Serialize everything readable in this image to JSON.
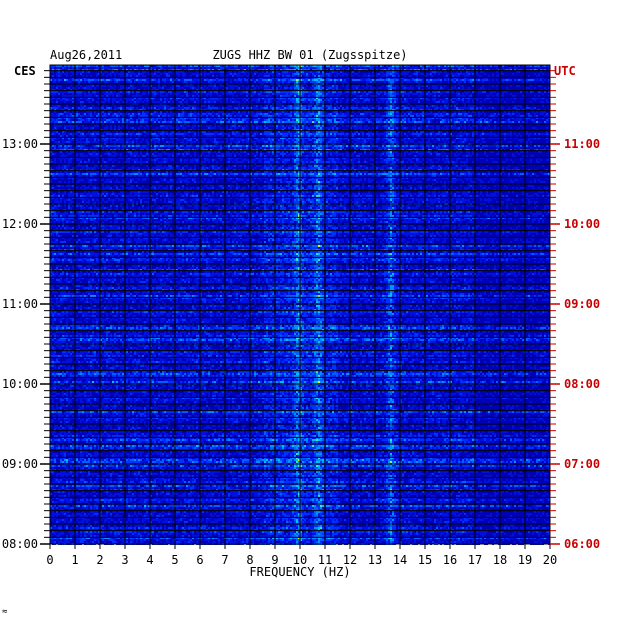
{
  "chart_data": {
    "type": "heatmap",
    "date": "Aug26,2011",
    "title": "ZUGS HHZ BW 01 (Zugsspitze)",
    "xlabel": "FREQUENCY (HZ)",
    "xlim": [
      0,
      20
    ],
    "x_ticks": [
      "0",
      "1",
      "2",
      "3",
      "4",
      "5",
      "6",
      "7",
      "8",
      "9",
      "10",
      "11",
      "12",
      "13",
      "14",
      "15",
      "16",
      "17",
      "18",
      "19",
      "20"
    ],
    "left_axis_label": "CES",
    "right_axis_label": "UTC",
    "left_time_ticks": [
      "13:00",
      "12:00",
      "11:00",
      "10:00",
      "09:00",
      "08:00"
    ],
    "right_time_ticks": [
      "11:00",
      "10:00",
      "09:00",
      "08:00",
      "07:00",
      "06:00"
    ],
    "time_range_local": [
      "08:00",
      "13:50"
    ],
    "rows_per_hour": 12,
    "colors": {
      "background": "#0000b4",
      "grid": "#000000",
      "utc_label": "#cc0000",
      "spectral_lines_hz": [
        9.9,
        10.7,
        13.6
      ]
    }
  },
  "footer_mark": "≈"
}
